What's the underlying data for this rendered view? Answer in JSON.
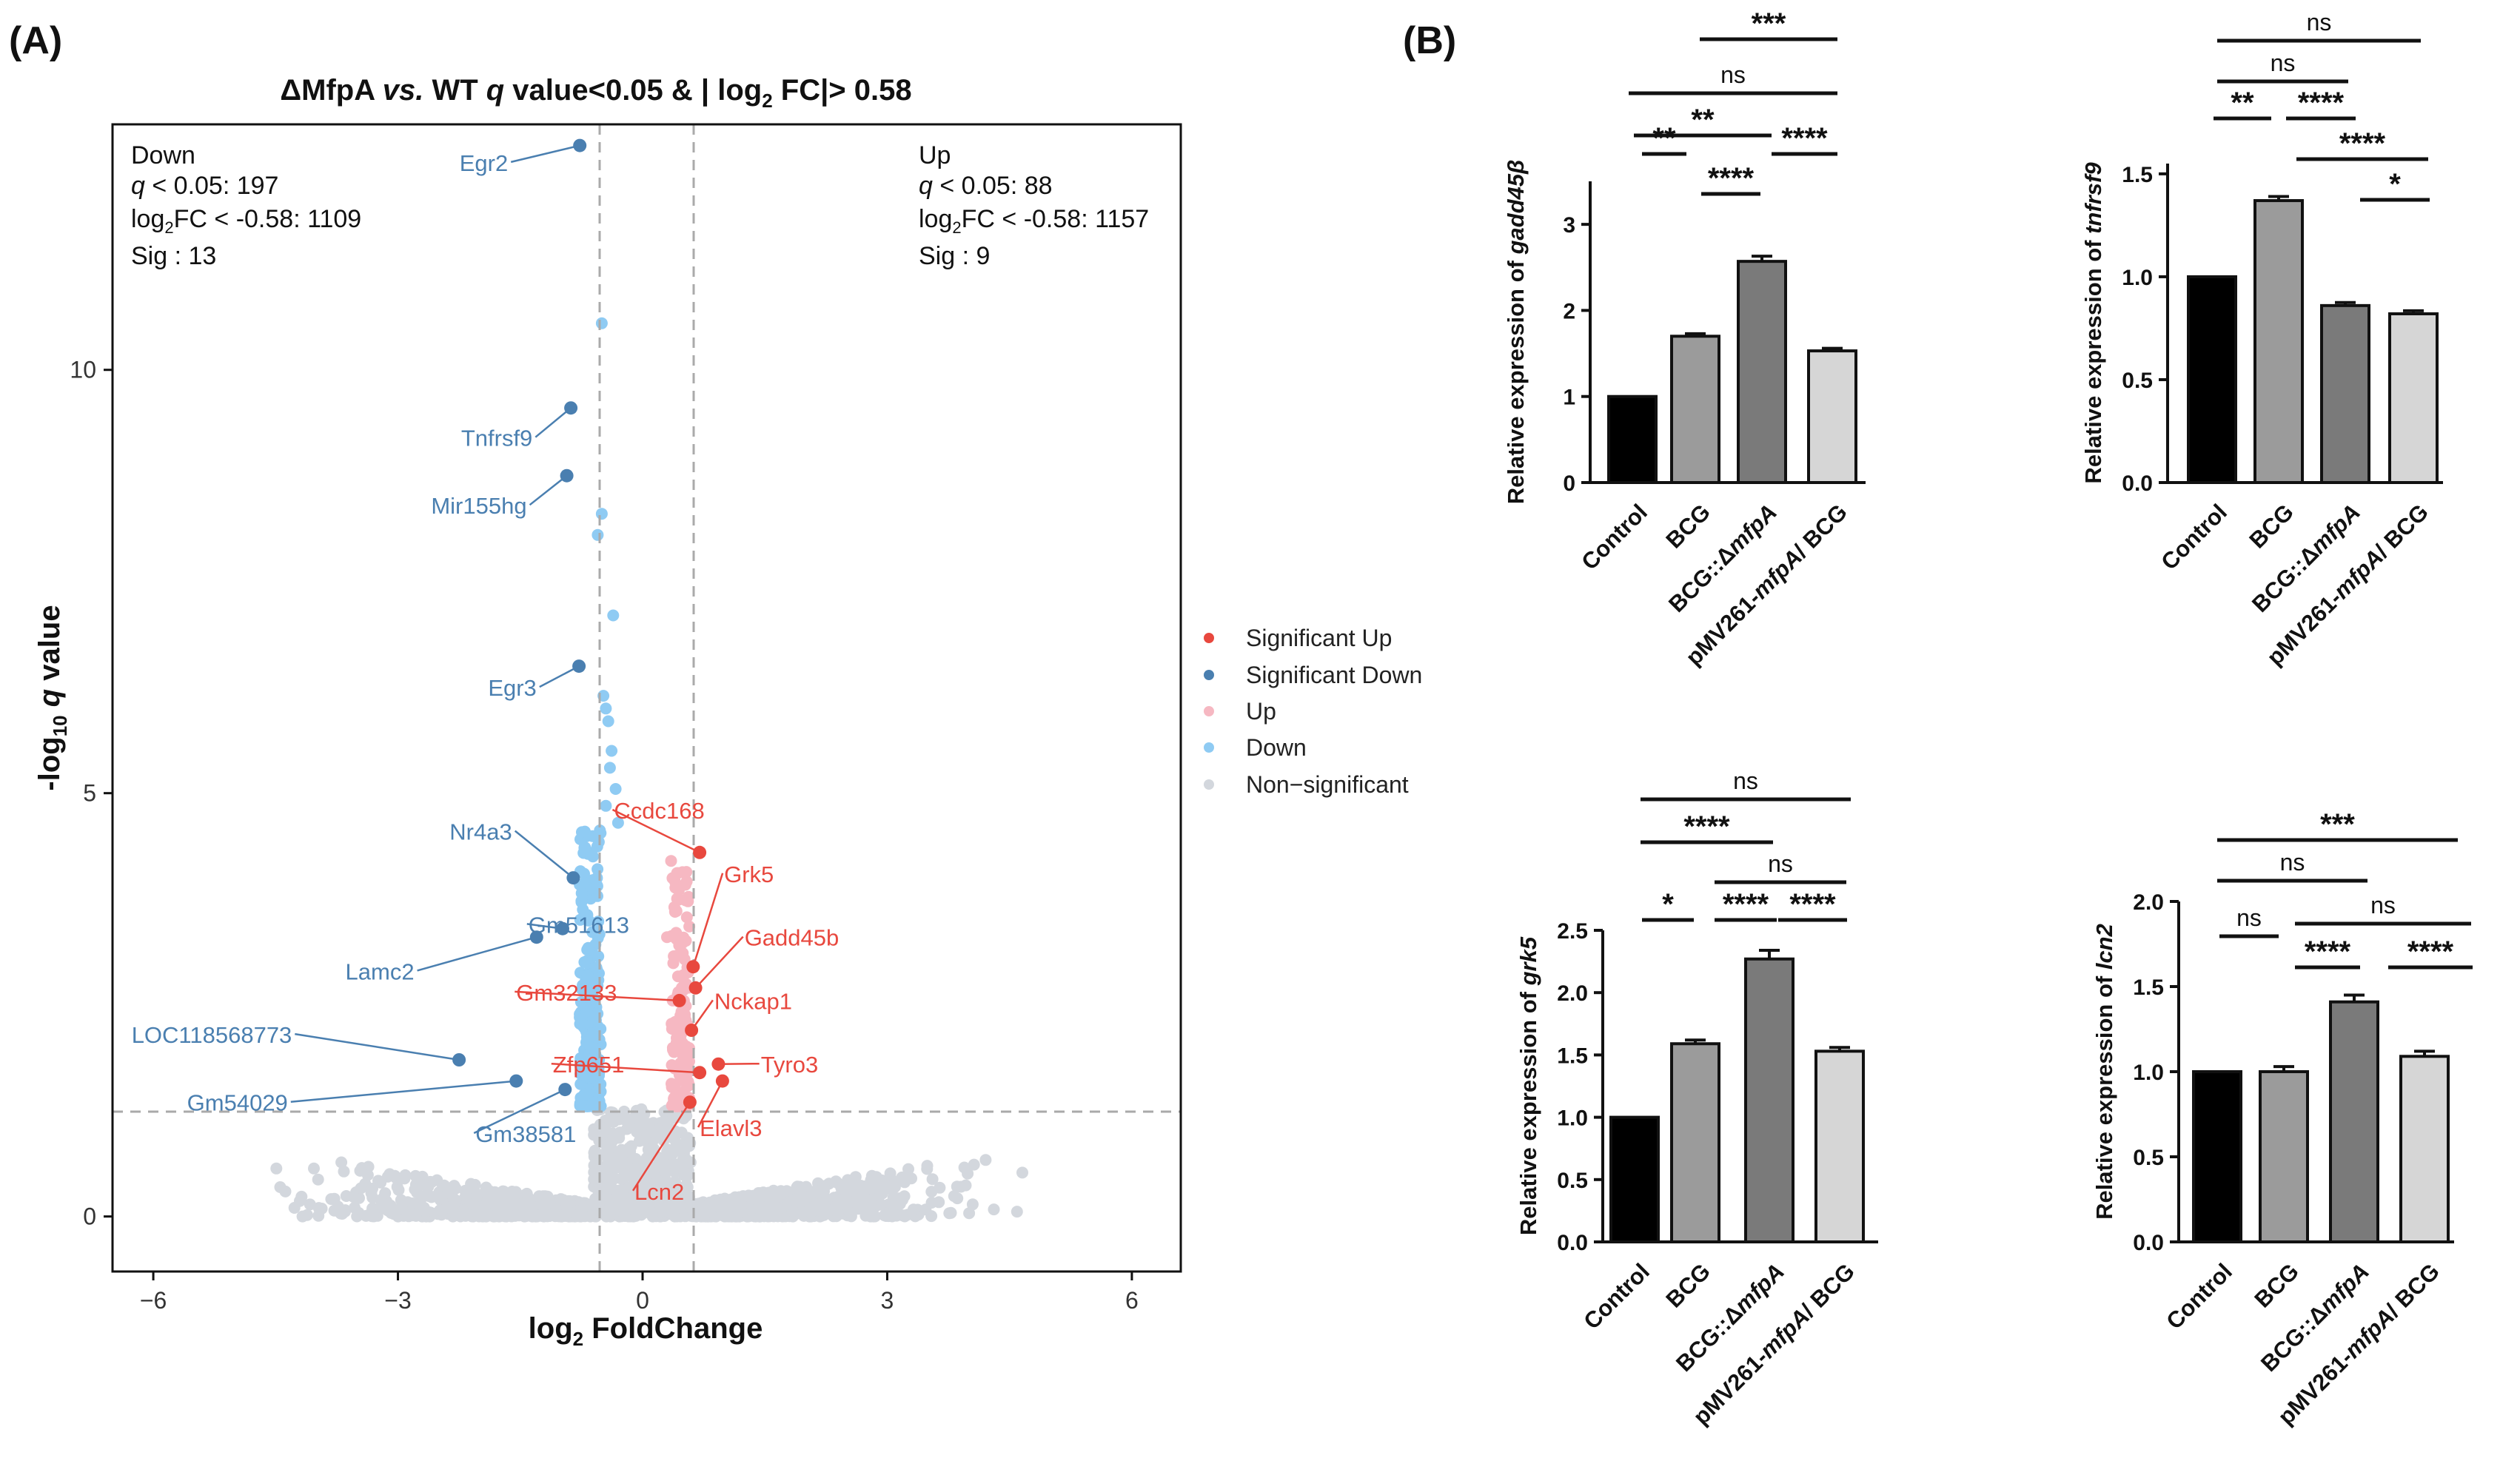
{
  "figure_labels": {
    "a": "(A)",
    "b": "(B)"
  },
  "volcano": {
    "title_parts": [
      "ΔMfpA ",
      "vs.",
      " WT ",
      "q",
      " value<0.05 & | log",
      "2",
      " FC|> 0.58"
    ],
    "xlabel_parts": [
      "log",
      "2",
      " FoldChange"
    ],
    "ylabel_parts": [
      "-log",
      "10",
      " ",
      "q",
      " value"
    ],
    "xticks": [
      "−6",
      "−3",
      "0",
      "3",
      "6"
    ],
    "yticks": [
      "0",
      "5",
      "10"
    ],
    "down_box": {
      "title": "Down",
      "q_label": "q",
      "q_text": " < 0.05: 197",
      "fc_pre": "log",
      "fc_sub": "2",
      "fc_text": "FC < -0.58: 1109",
      "sig": "Sig : 13"
    },
    "up_box": {
      "title": "Up",
      "q_label": "q",
      "q_text": " < 0.05: 88",
      "fc_pre": "log",
      "fc_sub": "2",
      "fc_text": "FC < -0.58: 1157",
      "sig": "Sig : 9"
    },
    "legend": [
      {
        "label": "Significant Up",
        "color": "#e8483e"
      },
      {
        "label": "Significant Down",
        "color": "#4a7fb0"
      },
      {
        "label": "Up",
        "color": "#f6b8c2"
      },
      {
        "label": "Down",
        "color": "#8fcbf3"
      },
      {
        "label": "Non−significant",
        "color": "#d3d7dd"
      }
    ]
  },
  "chart_data": [
    {
      "type": "scatter",
      "name": "volcano",
      "title": "ΔMfpA vs. WT q value<0.05 & | log2 FC|> 0.58",
      "xlabel": "log2 FoldChange",
      "ylabel": "-log10 q value",
      "xlim": [
        -6.5,
        6.6
      ],
      "ylim": [
        -0.65,
        12.9
      ],
      "thresholds": {
        "x": [
          -0.58,
          0.58
        ],
        "y": 1.3
      },
      "labeled_points": [
        {
          "gene": "Egr2",
          "x": -0.77,
          "y": 12.65,
          "group": "down"
        },
        {
          "gene": "Tnfrsf9",
          "x": -0.88,
          "y": 9.55,
          "group": "down"
        },
        {
          "gene": "Mir155hg",
          "x": -0.93,
          "y": 8.75,
          "group": "down"
        },
        {
          "gene": "Egr3",
          "x": -0.78,
          "y": 6.5,
          "group": "down"
        },
        {
          "gene": "Nr4a3",
          "x": -0.85,
          "y": 4.0,
          "group": "down"
        },
        {
          "gene": "Gm51613",
          "x": -0.98,
          "y": 3.4,
          "group": "down"
        },
        {
          "gene": "Lamc2",
          "x": -1.3,
          "y": 3.3,
          "group": "down"
        },
        {
          "gene": "LOC118568773",
          "x": -2.25,
          "y": 1.85,
          "group": "down"
        },
        {
          "gene": "Gm54029",
          "x": -1.55,
          "y": 1.6,
          "group": "down"
        },
        {
          "gene": "Gm38581",
          "x": -0.95,
          "y": 1.5,
          "group": "down"
        },
        {
          "gene": "Ccdc168",
          "x": 0.7,
          "y": 4.3,
          "group": "up"
        },
        {
          "gene": "Grk5",
          "x": 0.62,
          "y": 2.95,
          "group": "up"
        },
        {
          "gene": "Gadd45b",
          "x": 0.65,
          "y": 2.7,
          "group": "up"
        },
        {
          "gene": "Gm32133",
          "x": 0.45,
          "y": 2.55,
          "group": "up"
        },
        {
          "gene": "Nckap1",
          "x": 0.6,
          "y": 2.2,
          "group": "up"
        },
        {
          "gene": "Zfp651",
          "x": 0.7,
          "y": 1.7,
          "group": "up"
        },
        {
          "gene": "Tyro3",
          "x": 0.93,
          "y": 1.8,
          "group": "up"
        },
        {
          "gene": "Elavl3",
          "x": 0.98,
          "y": 1.6,
          "group": "up"
        },
        {
          "gene": "Lcn2",
          "x": 0.58,
          "y": 1.35,
          "group": "up"
        }
      ],
      "counts": {
        "down_q": 197,
        "down_fc": 1109,
        "down_sig": 13,
        "up_q": 88,
        "up_fc": 1157,
        "up_sig": 9
      }
    },
    {
      "type": "bar",
      "name": "gadd45b",
      "ylabel_pre": "Relative expression of ",
      "ylabel_gene": "gadd45β",
      "categories": [
        "Control",
        "BCG",
        "BCG::ΔmfpA",
        "pMV261-mfpA/ BCG"
      ],
      "values": [
        1.0,
        1.7,
        2.57,
        1.53
      ],
      "errors": [
        0,
        0.03,
        0.06,
        0.03
      ],
      "ylim": [
        0,
        3.5
      ],
      "yticks": [
        0,
        1,
        2,
        3
      ],
      "yticklabels": [
        "0",
        "1",
        "2",
        "3"
      ],
      "colors": [
        "#000000",
        "#9b9b9b",
        "#7a7a7a",
        "#d6d6d6"
      ],
      "brackets": [
        {
          "from": 0,
          "to": 1,
          "label": "**"
        },
        {
          "from": 1,
          "to": 2,
          "label": "****"
        },
        {
          "from": 2,
          "to": 3,
          "label": "****"
        },
        {
          "from": 0,
          "to": 2,
          "label": "**"
        },
        {
          "from": 0,
          "to": 3,
          "label": "ns"
        },
        {
          "from": 1,
          "to": 3,
          "label": "***"
        }
      ]
    },
    {
      "type": "bar",
      "name": "tnfrsf9",
      "ylabel_pre": "Relative expression of ",
      "ylabel_gene": "tnfrsf9",
      "categories": [
        "Control",
        "BCG",
        "BCG::ΔmfpA",
        "pMV261-mfpA/ BCG"
      ],
      "values": [
        1.0,
        1.37,
        0.86,
        0.82
      ],
      "errors": [
        0,
        0.02,
        0.015,
        0.015
      ],
      "ylim": [
        0,
        1.55
      ],
      "yticks": [
        0,
        0.5,
        1,
        1.5
      ],
      "yticklabels": [
        "0.0",
        "0.5",
        "1.0",
        "1.5"
      ],
      "colors": [
        "#000000",
        "#9b9b9b",
        "#7a7a7a",
        "#d6d6d6"
      ],
      "brackets": [
        {
          "from": 2,
          "to": 3,
          "label": "*"
        },
        {
          "from": 1,
          "to": 3,
          "label": "****"
        },
        {
          "from": 0,
          "to": 1,
          "label": "**"
        },
        {
          "from": 1,
          "to": 2,
          "label": "****"
        },
        {
          "from": 0,
          "to": 2,
          "label": "ns"
        },
        {
          "from": 0,
          "to": 3,
          "label": "ns"
        }
      ]
    },
    {
      "type": "bar",
      "name": "grk5",
      "ylabel_pre": "Relative expression of ",
      "ylabel_gene": "grk5",
      "categories": [
        "Control",
        "BCG",
        "BCG::ΔmfpA",
        "pMV261-mfpA/ BCG"
      ],
      "values": [
        1.0,
        1.59,
        2.27,
        1.53
      ],
      "errors": [
        0,
        0.03,
        0.07,
        0.03
      ],
      "ylim": [
        0,
        2.5
      ],
      "yticks": [
        0,
        0.5,
        1,
        1.5,
        2,
        2.5
      ],
      "yticklabels": [
        "0.0",
        "0.5",
        "1.0",
        "1.5",
        "2.0",
        "2.5"
      ],
      "colors": [
        "#000000",
        "#9b9b9b",
        "#7a7a7a",
        "#d6d6d6"
      ],
      "brackets": [
        {
          "from": 0,
          "to": 1,
          "label": "*"
        },
        {
          "from": 1,
          "to": 2,
          "label": "****"
        },
        {
          "from": 2,
          "to": 3,
          "label": "****"
        },
        {
          "from": 1,
          "to": 3,
          "label": "ns"
        },
        {
          "from": 0,
          "to": 2,
          "label": "****"
        },
        {
          "from": 0,
          "to": 3,
          "label": "ns"
        }
      ]
    },
    {
      "type": "bar",
      "name": "lcn2",
      "ylabel_pre": "Relative expression of ",
      "ylabel_gene": "lcn2",
      "categories": [
        "Control",
        "BCG",
        "BCG::ΔmfpA",
        "pMV261-mfpA/ BCG"
      ],
      "values": [
        1.0,
        1.0,
        1.41,
        1.09
      ],
      "errors": [
        0,
        0.03,
        0.04,
        0.03
      ],
      "ylim": [
        0,
        2.0
      ],
      "yticks": [
        0,
        0.5,
        1,
        1.5,
        2
      ],
      "yticklabels": [
        "0.0",
        "0.5",
        "1.0",
        "1.5",
        "2.0"
      ],
      "colors": [
        "#000000",
        "#9b9b9b",
        "#7a7a7a",
        "#d6d6d6"
      ],
      "brackets": [
        {
          "from": 1,
          "to": 2,
          "label": "****"
        },
        {
          "from": 2,
          "to": 3,
          "label": "****"
        },
        {
          "from": 0,
          "to": 1,
          "label": "ns"
        },
        {
          "from": 1,
          "to": 3,
          "label": "ns"
        },
        {
          "from": 0,
          "to": 2,
          "label": "ns"
        },
        {
          "from": 0,
          "to": 3,
          "label": "***"
        }
      ]
    }
  ]
}
